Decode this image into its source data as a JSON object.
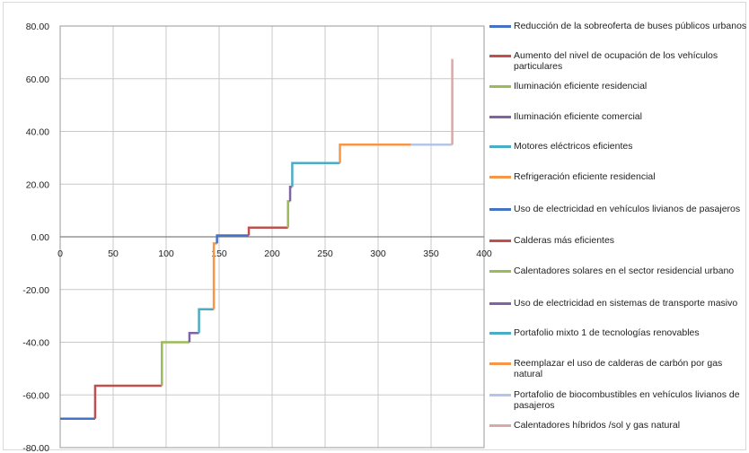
{
  "chart_data": {
    "type": "line",
    "title": "",
    "xlabel": "",
    "ylabel": "",
    "xlim": [
      0,
      400
    ],
    "ylim": [
      -80,
      80
    ],
    "x_ticks": [
      0,
      50,
      100,
      150,
      200,
      250,
      300,
      350,
      400
    ],
    "x_tick_labels": [
      "0",
      "50",
      "100",
      "150",
      "200",
      "250",
      "300",
      "350",
      "400"
    ],
    "y_ticks": [
      80,
      60,
      40,
      20,
      0,
      -20,
      -40,
      -60,
      -80
    ],
    "y_tick_labels": [
      "80.00",
      "60.00",
      "40.00",
      "20.00",
      "0.00",
      "-20.00",
      "-40.00",
      "-60.00",
      "-80.00"
    ],
    "grid": true,
    "legend_position": "right",
    "series": [
      {
        "name": "Reducción de la sobreoferta de buses públicos urbanos",
        "color": "#4472c4",
        "x_start": 0,
        "x_end": 33,
        "value": -69
      },
      {
        "name": "Aumento del nivel de ocupación de los vehículos particulares",
        "color": "#c0504d",
        "x_start": 33,
        "x_end": 96,
        "value": -56.5
      },
      {
        "name": "Iluminación eficiente residencial",
        "color": "#9bbb59",
        "x_start": 96,
        "x_end": 122,
        "value": -40
      },
      {
        "name": "Iluminación eficiente comercial",
        "color": "#8064a2",
        "x_start": 122,
        "x_end": 131,
        "value": -36.5
      },
      {
        "name": "Motores eléctricos eficientes",
        "color": "#4bacc6",
        "x_start": 131,
        "x_end": 145,
        "value": -27.5
      },
      {
        "name": "Refrigeración eficiente residencial",
        "color": "#f79646",
        "x_start": 145,
        "x_end": 148,
        "value": -2.5
      },
      {
        "name": "Uso de electricidad en vehículos livianos de pasajeros",
        "color": "#4472c4",
        "x_start": 148,
        "x_end": 178,
        "value": 0.5
      },
      {
        "name": "Calderas más eficientes",
        "color": "#c0504d",
        "x_start": 178,
        "x_end": 215,
        "value": 3.5
      },
      {
        "name": "Calentadores solares en el sector residencial urbano",
        "color": "#9bbb59",
        "x_start": 215,
        "x_end": 217,
        "value": 13.5
      },
      {
        "name": "Uso de electricidad en sistemas de transporte masivo",
        "color": "#8064a2",
        "x_start": 217,
        "x_end": 219,
        "value": 19
      },
      {
        "name": "Portafolio mixto 1 de tecnologías renovables",
        "color": "#4bacc6",
        "x_start": 219,
        "x_end": 264,
        "value": 28
      },
      {
        "name": "Reemplazar el uso de calderas de carbón por gas natural",
        "color": "#f79646",
        "x_start": 264,
        "x_end": 331,
        "value": 35
      },
      {
        "name": "Portafolio de biocombustibles en vehículos livianos de pasajeros",
        "color": "#b4c6e7",
        "x_start": 331,
        "x_end": 370,
        "value": 35
      },
      {
        "name": "Calentadores híbridos /sol y gas natural",
        "color": "#d8a9a6",
        "x_start": 370,
        "x_end": 370,
        "value": 67.5
      }
    ]
  }
}
